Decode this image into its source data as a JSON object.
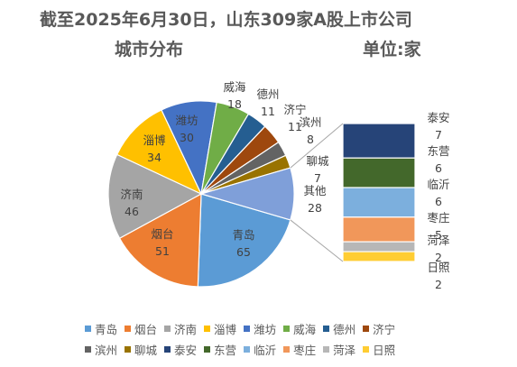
{
  "title_line1": "截至2025年6月30日，山东309家A股上市公司",
  "title_line2": "城市分布",
  "unit_label": "单位:家",
  "chart_data": {
    "type": "pie",
    "title": "截至2025年6月30日，山东309家A股上市公司 城市分布",
    "unit": "单位:家",
    "legend_position": "bottom",
    "main_slices": [
      {
        "name": "青岛",
        "value": 65,
        "color": "#5b9bd5"
      },
      {
        "name": "烟台",
        "value": 51,
        "color": "#ed7d31"
      },
      {
        "name": "济南",
        "value": 46,
        "color": "#a5a5a5"
      },
      {
        "name": "淄博",
        "value": 34,
        "color": "#ffc000"
      },
      {
        "name": "潍坊",
        "value": 30,
        "color": "#4472c4"
      },
      {
        "name": "威海",
        "value": 18,
        "color": "#70ad47"
      },
      {
        "name": "德州",
        "value": 11,
        "color": "#255e91"
      },
      {
        "name": "济宁",
        "value": 11,
        "color": "#9e480e"
      },
      {
        "name": "滨州",
        "value": 8,
        "color": "#636363"
      },
      {
        "name": "聊城",
        "value": 7,
        "color": "#997300"
      },
      {
        "name": "其他",
        "value": 28,
        "color": "#7f9fd9"
      }
    ],
    "other_breakdown": [
      {
        "name": "泰安",
        "value": 7,
        "color": "#264478"
      },
      {
        "name": "东营",
        "value": 6,
        "color": "#43682b"
      },
      {
        "name": "临沂",
        "value": 6,
        "color": "#7cafdd"
      },
      {
        "name": "枣庄",
        "value": 5,
        "color": "#f1975a"
      },
      {
        "name": "菏泽",
        "value": 2,
        "color": "#b7b7b7"
      },
      {
        "name": "日照",
        "value": 2,
        "color": "#ffcd33"
      }
    ],
    "legend": [
      "青岛",
      "烟台",
      "济南",
      "淄博",
      "潍坊",
      "威海",
      "德州",
      "济宁",
      "滨州",
      "聊城",
      "泰安",
      "东营",
      "临沂",
      "枣庄",
      "菏泽",
      "日照"
    ]
  }
}
